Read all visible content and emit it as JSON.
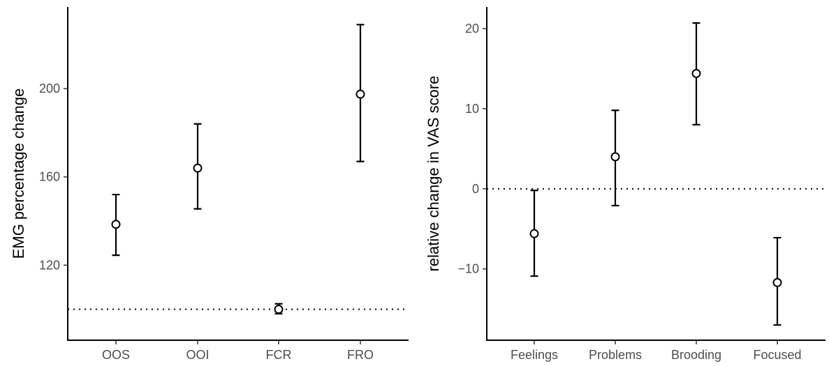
{
  "chart_data": [
    {
      "type": "errorbar",
      "xlabel": "",
      "ylabel": "EMG percentage change",
      "categories": [
        "OOS",
        "OOI",
        "FCR",
        "FRO"
      ],
      "series": [
        {
          "points": [
            {
              "x": "OOS",
              "y": 138.5,
              "lower": 124.5,
              "upper": 152
            },
            {
              "x": "OOI",
              "y": 164,
              "lower": 145.5,
              "upper": 184
            },
            {
              "x": "FCR",
              "y": 100,
              "lower": 98,
              "upper": 102.5
            },
            {
              "x": "FRO",
              "y": 197.5,
              "lower": 167,
              "upper": 229
            }
          ]
        }
      ],
      "reference_line": {
        "y": 100,
        "style": "dotted"
      },
      "ylim": [
        86,
        237
      ],
      "yticks": [
        120,
        160,
        200
      ],
      "grid": false
    },
    {
      "type": "errorbar",
      "xlabel": "",
      "ylabel": "relative change in VAS score",
      "categories": [
        "Feelings",
        "Problems",
        "Brooding",
        "Focused"
      ],
      "series": [
        {
          "points": [
            {
              "x": "Feelings",
              "y": -5.6,
              "lower": -10.9,
              "upper": -0.2
            },
            {
              "x": "Problems",
              "y": 4,
              "lower": -2.1,
              "upper": 9.8
            },
            {
              "x": "Brooding",
              "y": 14.4,
              "lower": 8,
              "upper": 20.7
            },
            {
              "x": "Focused",
              "y": -11.7,
              "lower": -17,
              "upper": -6.1
            }
          ]
        }
      ],
      "reference_line": {
        "y": 0,
        "style": "dotted"
      },
      "ylim": [
        -18.9,
        22.7
      ],
      "yticks": [
        -10,
        0,
        10,
        20
      ],
      "grid": false
    }
  ]
}
